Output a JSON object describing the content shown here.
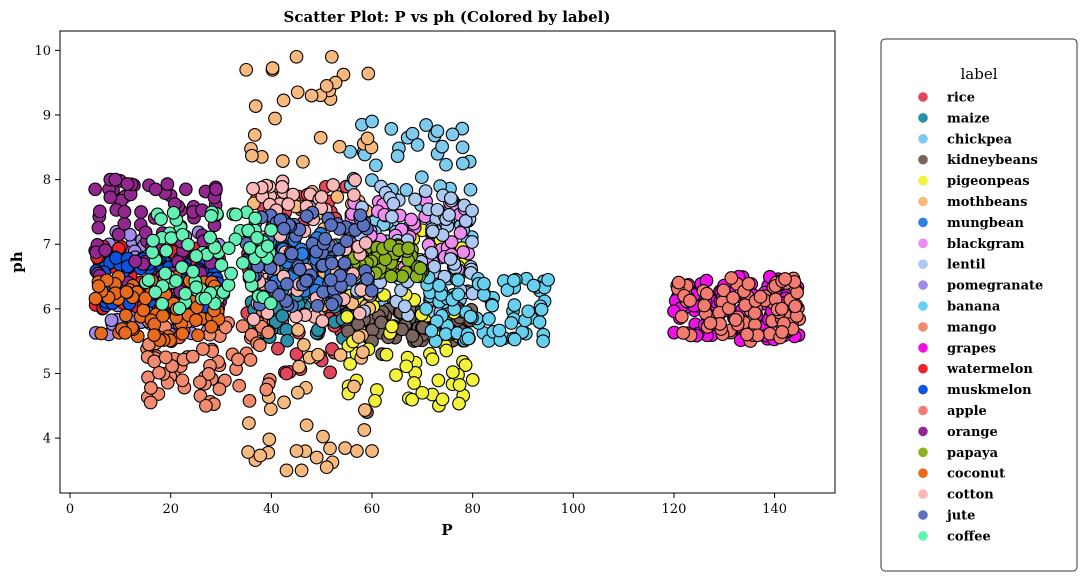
{
  "chart_data": {
    "type": "scatter",
    "title": "Scatter Plot: P vs ph (Colored by label)",
    "xlabel": "P",
    "ylabel": "ph",
    "xlim": [
      -2,
      152
    ],
    "ylim": [
      3.15,
      10.3
    ],
    "xticks": [
      0,
      20,
      40,
      60,
      80,
      100,
      120,
      140
    ],
    "yticks": [
      4,
      5,
      6,
      7,
      8,
      9,
      10
    ],
    "grid": false,
    "legend": {
      "title": "label",
      "placement": "outside-right"
    },
    "series": [
      {
        "name": "rice",
        "color": "#e0475a",
        "xr": [
          35,
          60
        ],
        "yr": [
          5.0,
          7.9
        ],
        "n": 80,
        "extra": [
          [
            45,
            5.3
          ],
          [
            50,
            5.2
          ],
          [
            43,
            5.0
          ]
        ]
      },
      {
        "name": "maize",
        "color": "#2a8fa8",
        "xr": [
          35,
          60
        ],
        "yr": [
          5.5,
          7.0
        ],
        "n": 80,
        "extra": []
      },
      {
        "name": "chickpea",
        "color": "#7ecbee",
        "xr": [
          55,
          80
        ],
        "yr": [
          5.9,
          8.9
        ],
        "n": 80,
        "extra": [
          [
            73,
            8.75
          ],
          [
            76,
            8.7
          ],
          [
            78,
            8.5
          ],
          [
            58,
            8.85
          ],
          [
            60,
            8.9
          ]
        ]
      },
      {
        "name": "kidneybeans",
        "color": "#7a6460",
        "xr": [
          55,
          80
        ],
        "yr": [
          5.5,
          6.0
        ],
        "n": 80,
        "extra": [
          [
            60,
            5.5
          ],
          [
            62,
            5.3
          ],
          [
            59,
            4.4
          ]
        ]
      },
      {
        "name": "pigeonpeas",
        "color": "#f2f23a",
        "xr": [
          55,
          80
        ],
        "yr": [
          4.5,
          7.4
        ],
        "n": 80,
        "extra": [
          [
            74,
            4.6
          ],
          [
            80,
            4.9
          ],
          [
            70,
            4.7
          ]
        ]
      },
      {
        "name": "mothbeans",
        "color": "#f7b97e",
        "xr": [
          35,
          60
        ],
        "yr": [
          3.5,
          9.9
        ],
        "n": 85,
        "extra": [
          [
            45,
            9.9
          ],
          [
            52,
            9.9
          ],
          [
            35,
            9.7
          ],
          [
            51,
            9.45
          ],
          [
            48,
            9.3
          ],
          [
            43,
            3.5
          ],
          [
            46,
            3.5
          ],
          [
            51,
            3.55
          ],
          [
            57,
            3.8
          ],
          [
            60,
            3.8
          ],
          [
            45,
            3.8
          ],
          [
            49,
            3.7
          ],
          [
            47,
            4.2
          ]
        ]
      },
      {
        "name": "mungbean",
        "color": "#2f7fe0",
        "xr": [
          35,
          60
        ],
        "yr": [
          6.2,
          7.2
        ],
        "n": 80,
        "extra": []
      },
      {
        "name": "blackgram",
        "color": "#f08cf0",
        "xr": [
          55,
          80
        ],
        "yr": [
          6.6,
          7.7
        ],
        "n": 80,
        "extra": []
      },
      {
        "name": "lentil",
        "color": "#adc9f2",
        "xr": [
          55,
          80
        ],
        "yr": [
          5.9,
          7.9
        ],
        "n": 80,
        "extra": []
      },
      {
        "name": "pomegranate",
        "color": "#a08ce8",
        "xr": [
          5,
          30
        ],
        "yr": [
          5.6,
          7.2
        ],
        "n": 80,
        "extra": []
      },
      {
        "name": "banana",
        "color": "#67d0ee",
        "xr": [
          70,
          95
        ],
        "yr": [
          5.5,
          6.5
        ],
        "n": 80,
        "extra": [
          [
            95,
            6.45
          ],
          [
            94,
            5.5
          ]
        ]
      },
      {
        "name": "mango",
        "color": "#f28a6e",
        "xr": [
          15,
          40
        ],
        "yr": [
          4.5,
          6.0
        ],
        "n": 80,
        "extra": [
          [
            16,
            4.55
          ],
          [
            27,
            4.5
          ],
          [
            39,
            4.75
          ],
          [
            19,
            5.25
          ]
        ]
      },
      {
        "name": "grapes",
        "color": "#f010e6",
        "xr": [
          120,
          145
        ],
        "yr": [
          5.5,
          6.5
        ],
        "n": 90,
        "extra": []
      },
      {
        "name": "watermelon",
        "color": "#ee2229",
        "xr": [
          5,
          30
        ],
        "yr": [
          6.0,
          7.0
        ],
        "n": 80,
        "extra": [
          [
            5,
            6.9
          ]
        ]
      },
      {
        "name": "muskmelon",
        "color": "#0f52e0",
        "xr": [
          5,
          30
        ],
        "yr": [
          6.0,
          6.8
        ],
        "n": 80,
        "extra": []
      },
      {
        "name": "apple",
        "color": "#f37b6f",
        "xr": [
          120,
          145
        ],
        "yr": [
          5.5,
          6.5
        ],
        "n": 90,
        "extra": []
      },
      {
        "name": "orange",
        "color": "#92278f",
        "xr": [
          5,
          30
        ],
        "yr": [
          6.0,
          8.0
        ],
        "n": 80,
        "extra": [
          [
            5,
            7.85
          ],
          [
            8,
            8.0
          ],
          [
            9,
            8.0
          ],
          [
            17,
            7.85
          ],
          [
            23,
            7.85
          ],
          [
            29,
            7.85
          ]
        ]
      },
      {
        "name": "papaya",
        "color": "#8cb21e",
        "xr": [
          55,
          70
        ],
        "yr": [
          6.5,
          7.0
        ],
        "n": 60,
        "extra": []
      },
      {
        "name": "coconut",
        "color": "#e86a1c",
        "xr": [
          5,
          30
        ],
        "yr": [
          5.5,
          6.5
        ],
        "n": 80,
        "extra": []
      },
      {
        "name": "cotton",
        "color": "#fab8b8",
        "xr": [
          35,
          60
        ],
        "yr": [
          5.8,
          8.0
        ],
        "n": 80,
        "extra": []
      },
      {
        "name": "jute",
        "color": "#5b72c0",
        "xr": [
          35,
          60
        ],
        "yr": [
          6.0,
          7.5
        ],
        "n": 80,
        "extra": []
      },
      {
        "name": "coffee",
        "color": "#62f0b5",
        "xr": [
          15,
          40
        ],
        "yr": [
          6.0,
          7.5
        ],
        "n": 80,
        "extra": []
      }
    ]
  }
}
